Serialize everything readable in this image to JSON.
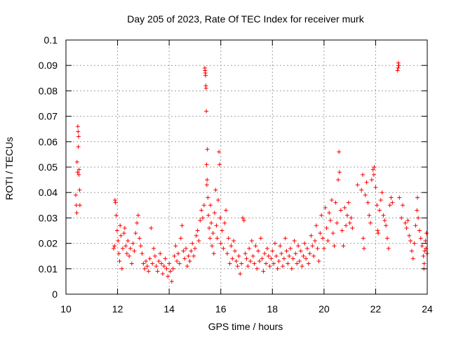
{
  "chart_data": {
    "type": "scatter",
    "title": "Day 205 of 2023, Rate Of TEC Index for receiver murk",
    "xlabel": "GPS time / hours",
    "ylabel": "ROTI / TECUs",
    "xlim": [
      10,
      24
    ],
    "ylim": [
      0,
      0.1
    ],
    "xticks": [
      "10",
      "12",
      "14",
      "16",
      "18",
      "20",
      "22",
      "24"
    ],
    "yticks": [
      "0",
      "0.01",
      "0.02",
      "0.03",
      "0.04",
      "0.05",
      "0.06",
      "0.07",
      "0.08",
      "0.09",
      "0.1"
    ],
    "grid": true,
    "marker": "plus",
    "color": "#ff0000",
    "series": [
      {
        "name": "ROTI",
        "points": [
          [
            10.38,
            0.039
          ],
          [
            10.4,
            0.035
          ],
          [
            10.42,
            0.032
          ],
          [
            10.43,
            0.052
          ],
          [
            10.45,
            0.048
          ],
          [
            10.46,
            0.066
          ],
          [
            10.47,
            0.064
          ],
          [
            10.48,
            0.058
          ],
          [
            10.49,
            0.062
          ],
          [
            10.5,
            0.047
          ],
          [
            10.51,
            0.049
          ],
          [
            10.53,
            0.041
          ],
          [
            10.54,
            0.035
          ],
          [
            11.85,
            0.018
          ],
          [
            11.88,
            0.019
          ],
          [
            11.9,
            0.037
          ],
          [
            11.92,
            0.036
          ],
          [
            11.95,
            0.031
          ],
          [
            11.98,
            0.025
          ],
          [
            12.02,
            0.021
          ],
          [
            12.05,
            0.016
          ],
          [
            12.08,
            0.013
          ],
          [
            12.1,
            0.027
          ],
          [
            12.13,
            0.023
          ],
          [
            12.17,
            0.01
          ],
          [
            12.2,
            0.018
          ],
          [
            12.25,
            0.024
          ],
          [
            12.28,
            0.026
          ],
          [
            12.32,
            0.019
          ],
          [
            12.36,
            0.016
          ],
          [
            12.4,
            0.021
          ],
          [
            12.45,
            0.015
          ],
          [
            12.5,
            0.018
          ],
          [
            12.55,
            0.012
          ],
          [
            12.6,
            0.02
          ],
          [
            12.65,
            0.017
          ],
          [
            12.7,
            0.024
          ],
          [
            12.75,
            0.028
          ],
          [
            12.8,
            0.031
          ],
          [
            12.85,
            0.022
          ],
          [
            12.9,
            0.019
          ],
          [
            12.95,
            0.016
          ],
          [
            13.0,
            0.012
          ],
          [
            13.05,
            0.01
          ],
          [
            13.1,
            0.013
          ],
          [
            13.15,
            0.011
          ],
          [
            13.2,
            0.009
          ],
          [
            13.25,
            0.014
          ],
          [
            13.3,
            0.026
          ],
          [
            13.35,
            0.012
          ],
          [
            13.4,
            0.018
          ],
          [
            13.45,
            0.015
          ],
          [
            13.5,
            0.011
          ],
          [
            13.55,
            0.009
          ],
          [
            13.6,
            0.013
          ],
          [
            13.65,
            0.016
          ],
          [
            13.7,
            0.012
          ],
          [
            13.75,
            0.008
          ],
          [
            13.8,
            0.011
          ],
          [
            13.85,
            0.014
          ],
          [
            13.9,
            0.01
          ],
          [
            13.95,
            0.007
          ],
          [
            14.0,
            0.012
          ],
          [
            14.05,
            0.009
          ],
          [
            14.1,
            0.005
          ],
          [
            14.15,
            0.01
          ],
          [
            14.2,
            0.015
          ],
          [
            14.25,
            0.019
          ],
          [
            14.3,
            0.013
          ],
          [
            14.35,
            0.016
          ],
          [
            14.4,
            0.012
          ],
          [
            14.45,
            0.022
          ],
          [
            14.5,
            0.027
          ],
          [
            14.55,
            0.017
          ],
          [
            14.6,
            0.014
          ],
          [
            14.65,
            0.018
          ],
          [
            14.7,
            0.011
          ],
          [
            14.75,
            0.015
          ],
          [
            14.8,
            0.013
          ],
          [
            14.85,
            0.017
          ],
          [
            14.9,
            0.02
          ],
          [
            14.95,
            0.015
          ],
          [
            15.0,
            0.018
          ],
          [
            15.05,
            0.023
          ],
          [
            15.1,
            0.025
          ],
          [
            15.15,
            0.021
          ],
          [
            15.2,
            0.029
          ],
          [
            15.25,
            0.033
          ],
          [
            15.3,
            0.03
          ],
          [
            15.35,
            0.035
          ],
          [
            15.38,
            0.089
          ],
          [
            15.39,
            0.088
          ],
          [
            15.4,
            0.087
          ],
          [
            15.41,
            0.086
          ],
          [
            15.42,
            0.082
          ],
          [
            15.43,
            0.081
          ],
          [
            15.44,
            0.072
          ],
          [
            15.45,
            0.051
          ],
          [
            15.46,
            0.043
          ],
          [
            15.47,
            0.045
          ],
          [
            15.48,
            0.057
          ],
          [
            15.5,
            0.038
          ],
          [
            15.52,
            0.031
          ],
          [
            15.55,
            0.026
          ],
          [
            15.58,
            0.022
          ],
          [
            15.6,
            0.035
          ],
          [
            15.63,
            0.028
          ],
          [
            15.66,
            0.019
          ],
          [
            15.7,
            0.024
          ],
          [
            15.73,
            0.016
          ],
          [
            15.76,
            0.032
          ],
          [
            15.8,
            0.041
          ],
          [
            15.83,
            0.027
          ],
          [
            15.86,
            0.022
          ],
          [
            15.9,
            0.037
          ],
          [
            15.93,
            0.056
          ],
          [
            15.95,
            0.051
          ],
          [
            15.98,
            0.03
          ],
          [
            16.0,
            0.02
          ],
          [
            16.05,
            0.025
          ],
          [
            16.1,
            0.018
          ],
          [
            16.15,
            0.028
          ],
          [
            16.2,
            0.033
          ],
          [
            16.25,
            0.016
          ],
          [
            16.3,
            0.022
          ],
          [
            16.35,
            0.012
          ],
          [
            16.4,
            0.019
          ],
          [
            16.45,
            0.014
          ],
          [
            16.5,
            0.021
          ],
          [
            16.55,
            0.017
          ],
          [
            16.6,
            0.013
          ],
          [
            16.65,
            0.011
          ],
          [
            16.7,
            0.015
          ],
          [
            16.75,
            0.008
          ],
          [
            16.8,
            0.012
          ],
          [
            16.85,
            0.03
          ],
          [
            16.9,
            0.029
          ],
          [
            16.95,
            0.016
          ],
          [
            17.0,
            0.014
          ],
          [
            17.05,
            0.011
          ],
          [
            17.1,
            0.018
          ],
          [
            17.15,
            0.013
          ],
          [
            17.2,
            0.021
          ],
          [
            17.25,
            0.015
          ],
          [
            17.3,
            0.012
          ],
          [
            17.35,
            0.019
          ],
          [
            17.4,
            0.01
          ],
          [
            17.45,
            0.017
          ],
          [
            17.5,
            0.013
          ],
          [
            17.55,
            0.022
          ],
          [
            17.6,
            0.014
          ],
          [
            17.65,
            0.009
          ],
          [
            17.7,
            0.016
          ],
          [
            17.75,
            0.012
          ],
          [
            17.8,
            0.018
          ],
          [
            17.85,
            0.015
          ],
          [
            17.9,
            0.011
          ],
          [
            17.95,
            0.014
          ],
          [
            18.0,
            0.017
          ],
          [
            18.05,
            0.012
          ],
          [
            18.1,
            0.02
          ],
          [
            18.15,
            0.015
          ],
          [
            18.2,
            0.01
          ],
          [
            18.25,
            0.013
          ],
          [
            18.3,
            0.019
          ],
          [
            18.35,
            0.016
          ],
          [
            18.4,
            0.011
          ],
          [
            18.45,
            0.014
          ],
          [
            18.5,
            0.022
          ],
          [
            18.55,
            0.017
          ],
          [
            18.6,
            0.012
          ],
          [
            18.65,
            0.015
          ],
          [
            18.7,
            0.018
          ],
          [
            18.75,
            0.01
          ],
          [
            18.8,
            0.014
          ],
          [
            18.85,
            0.021
          ],
          [
            18.9,
            0.016
          ],
          [
            18.95,
            0.012
          ],
          [
            19.0,
            0.019
          ],
          [
            19.05,
            0.013
          ],
          [
            19.1,
            0.017
          ],
          [
            19.15,
            0.011
          ],
          [
            19.2,
            0.015
          ],
          [
            19.25,
            0.02
          ],
          [
            19.3,
            0.014
          ],
          [
            19.35,
            0.018
          ],
          [
            19.4,
            0.012
          ],
          [
            19.45,
            0.016
          ],
          [
            19.5,
            0.023
          ],
          [
            19.55,
            0.019
          ],
          [
            19.6,
            0.015
          ],
          [
            19.65,
            0.021
          ],
          [
            19.7,
            0.027
          ],
          [
            19.75,
            0.018
          ],
          [
            19.8,
            0.013
          ],
          [
            19.85,
            0.024
          ],
          [
            19.9,
            0.031
          ],
          [
            19.95,
            0.022
          ],
          [
            20.0,
            0.018
          ],
          [
            20.05,
            0.034
          ],
          [
            20.1,
            0.026
          ],
          [
            20.15,
            0.021
          ],
          [
            20.2,
            0.032
          ],
          [
            20.25,
            0.029
          ],
          [
            20.3,
            0.037
          ],
          [
            20.35,
            0.024
          ],
          [
            20.4,
            0.019
          ],
          [
            20.45,
            0.036
          ],
          [
            20.5,
            0.028
          ],
          [
            20.55,
            0.045
          ],
          [
            20.58,
            0.056
          ],
          [
            20.6,
            0.048
          ],
          [
            20.65,
            0.033
          ],
          [
            20.7,
            0.025
          ],
          [
            20.75,
            0.019
          ],
          [
            20.8,
            0.034
          ],
          [
            20.85,
            0.027
          ],
          [
            20.9,
            0.031
          ],
          [
            20.95,
            0.036
          ],
          [
            21.0,
            0.028
          ],
          [
            21.05,
            0.03
          ],
          [
            21.1,
            0.026
          ],
          [
            21.3,
            0.043
          ],
          [
            21.45,
            0.041
          ],
          [
            21.5,
            0.047
          ],
          [
            21.52,
            0.022
          ],
          [
            21.55,
            0.018
          ],
          [
            21.6,
            0.039
          ],
          [
            21.65,
            0.044
          ],
          [
            21.7,
            0.036
          ],
          [
            21.75,
            0.031
          ],
          [
            21.8,
            0.028
          ],
          [
            21.85,
            0.045
          ],
          [
            21.9,
            0.049
          ],
          [
            21.93,
            0.047
          ],
          [
            21.95,
            0.05
          ],
          [
            22.0,
            0.042
          ],
          [
            22.05,
            0.035
          ],
          [
            22.08,
            0.025
          ],
          [
            22.1,
            0.024
          ],
          [
            22.15,
            0.033
          ],
          [
            22.2,
            0.037
          ],
          [
            22.25,
            0.04
          ],
          [
            22.3,
            0.031
          ],
          [
            22.35,
            0.029
          ],
          [
            22.4,
            0.027
          ],
          [
            22.45,
            0.022
          ],
          [
            22.5,
            0.018
          ],
          [
            22.55,
            0.035
          ],
          [
            22.6,
            0.038
          ],
          [
            22.65,
            0.036
          ],
          [
            22.85,
            0.088
          ],
          [
            22.87,
            0.089
          ],
          [
            22.88,
            0.091
          ],
          [
            22.9,
            0.09
          ],
          [
            22.92,
            0.038
          ],
          [
            23.0,
            0.03
          ],
          [
            23.05,
            0.035
          ],
          [
            23.15,
            0.028
          ],
          [
            23.2,
            0.026
          ],
          [
            23.25,
            0.029
          ],
          [
            23.3,
            0.023
          ],
          [
            23.35,
            0.021
          ],
          [
            23.4,
            0.017
          ],
          [
            23.45,
            0.014
          ],
          [
            23.5,
            0.02
          ],
          [
            23.55,
            0.027
          ],
          [
            23.6,
            0.033
          ],
          [
            23.62,
            0.038
          ],
          [
            23.65,
            0.03
          ],
          [
            23.7,
            0.025
          ],
          [
            23.75,
            0.022
          ],
          [
            23.8,
            0.019
          ],
          [
            23.85,
            0.015
          ],
          [
            23.87,
            0.01
          ],
          [
            23.88,
            0.012
          ],
          [
            23.9,
            0.017
          ],
          [
            23.93,
            0.021
          ],
          [
            23.95,
            0.018
          ],
          [
            23.97,
            0.024
          ],
          [
            23.99,
            0.016
          ]
        ]
      }
    ]
  }
}
